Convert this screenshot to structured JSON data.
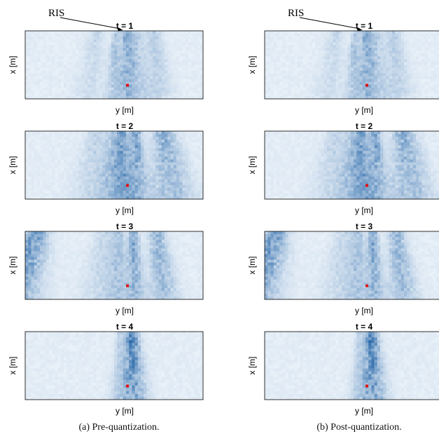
{
  "chart_data": [
    {
      "type": "heatmap",
      "caption": "(a) Pre-quantization.",
      "marker_label": "RIS",
      "panels": [
        {
          "title": "t = 1",
          "xlabel": "y [m]",
          "ylabel": "x [m]",
          "beams": [
            {
              "col": 0.57,
              "w": 0.025,
              "i": 0.35
            },
            {
              "col": 0.51,
              "w": 0.02,
              "i": 0.25
            },
            {
              "col": 0.62,
              "w": 0.035,
              "i": 0.22
            },
            {
              "col": 0.72,
              "w": 0.04,
              "i": 0.18
            },
            {
              "col": 0.4,
              "w": 0.04,
              "i": 0.12
            }
          ]
        },
        {
          "title": "t = 2",
          "xlabel": "y [m]",
          "ylabel": "x [m]",
          "beams": [
            {
              "col": 0.62,
              "w": 0.03,
              "i": 0.45
            },
            {
              "col": 0.55,
              "w": 0.025,
              "i": 0.4
            },
            {
              "col": 0.5,
              "w": 0.04,
              "i": 0.3
            },
            {
              "col": 0.78,
              "w": 0.06,
              "i": 0.35
            },
            {
              "col": 0.4,
              "w": 0.05,
              "i": 0.15
            }
          ]
        },
        {
          "title": "t = 3",
          "xlabel": "y [m]",
          "ylabel": "x [m]",
          "beams": [
            {
              "col": 0.07,
              "w": 0.06,
              "i": 0.5
            },
            {
              "col": 0.61,
              "w": 0.025,
              "i": 0.4
            },
            {
              "col": 0.53,
              "w": 0.03,
              "i": 0.25
            },
            {
              "col": 0.74,
              "w": 0.04,
              "i": 0.35
            },
            {
              "col": 0.45,
              "w": 0.05,
              "i": 0.15
            }
          ]
        },
        {
          "title": "t = 4",
          "xlabel": "y [m]",
          "ylabel": "x [m]",
          "beams": [
            {
              "col": 0.6,
              "w": 0.035,
              "i": 0.6
            },
            {
              "col": 0.53,
              "w": 0.02,
              "i": 0.15
            }
          ]
        }
      ],
      "user_marker_color": "#e01010",
      "colormap": [
        "#f2f7fc",
        "#08519c"
      ]
    },
    {
      "type": "heatmap",
      "caption": "(b) Post-quantization.",
      "marker_label": "RIS",
      "panels": [
        {
          "title": "t = 1",
          "xlabel": "y [m]",
          "ylabel": "x [m]",
          "beams": [
            {
              "col": 0.57,
              "w": 0.025,
              "i": 0.35
            },
            {
              "col": 0.51,
              "w": 0.02,
              "i": 0.25
            },
            {
              "col": 0.62,
              "w": 0.035,
              "i": 0.22
            },
            {
              "col": 0.72,
              "w": 0.04,
              "i": 0.18
            },
            {
              "col": 0.4,
              "w": 0.04,
              "i": 0.12
            }
          ]
        },
        {
          "title": "t = 2",
          "xlabel": "y [m]",
          "ylabel": "x [m]",
          "beams": [
            {
              "col": 0.62,
              "w": 0.03,
              "i": 0.45
            },
            {
              "col": 0.55,
              "w": 0.025,
              "i": 0.4
            },
            {
              "col": 0.5,
              "w": 0.04,
              "i": 0.3
            },
            {
              "col": 0.78,
              "w": 0.06,
              "i": 0.35
            },
            {
              "col": 0.4,
              "w": 0.05,
              "i": 0.15
            }
          ]
        },
        {
          "title": "t = 3",
          "xlabel": "y [m]",
          "ylabel": "x [m]",
          "beams": [
            {
              "col": 0.07,
              "w": 0.06,
              "i": 0.5
            },
            {
              "col": 0.61,
              "w": 0.025,
              "i": 0.4
            },
            {
              "col": 0.53,
              "w": 0.03,
              "i": 0.25
            },
            {
              "col": 0.74,
              "w": 0.04,
              "i": 0.35
            },
            {
              "col": 0.45,
              "w": 0.05,
              "i": 0.15
            }
          ]
        },
        {
          "title": "t = 4",
          "xlabel": "y [m]",
          "ylabel": "x [m]",
          "beams": [
            {
              "col": 0.6,
              "w": 0.035,
              "i": 0.6
            },
            {
              "col": 0.53,
              "w": 0.02,
              "i": 0.15
            }
          ]
        }
      ],
      "user_marker_color": "#e01010",
      "colormap": [
        "#f2f7fc",
        "#08519c"
      ]
    }
  ]
}
